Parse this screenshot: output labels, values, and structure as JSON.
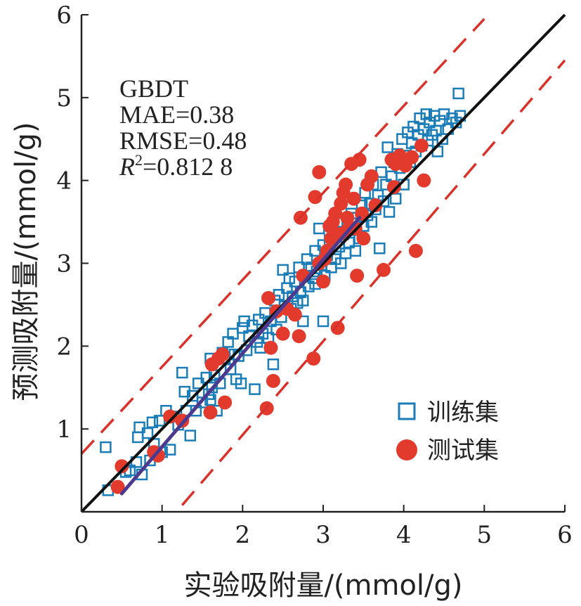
{
  "chart_data": {
    "type": "scatter",
    "xlabel": "实验吸附量/(mmol/g)",
    "ylabel": "预测吸附量/(mmol/g)",
    "xlim": [
      0,
      6
    ],
    "ylim": [
      0,
      6
    ],
    "x_ticks": [
      "0",
      "1",
      "2",
      "3",
      "4",
      "5",
      "6"
    ],
    "y_ticks": [
      "1",
      "2",
      "3",
      "4",
      "5",
      "6"
    ],
    "grid": false,
    "legend_position": "bottom-right",
    "stats": {
      "model": "GBDT",
      "mae": "MAE=0.38",
      "rmse": "RMSE=0.48",
      "r2_symbol": "R",
      "r2_exp": "2",
      "r2_value": "=0.812 8"
    },
    "reference_lines": [
      {
        "kind": "parity",
        "x": [
          0,
          6
        ],
        "y": [
          0,
          6
        ],
        "color": "#111111",
        "style": "solid"
      },
      {
        "kind": "upper-bound",
        "x": [
          0,
          5
        ],
        "y": [
          0.7,
          5.95
        ],
        "color": "#d9322b",
        "style": "dashed"
      },
      {
        "kind": "lower-bound",
        "x": [
          1.25,
          6
        ],
        "y": [
          0.08,
          5.45
        ],
        "color": "#d9322b",
        "style": "dashed"
      },
      {
        "kind": "fit",
        "x": [
          0.5,
          3.45
        ],
        "y": [
          0.22,
          3.55
        ],
        "color": "#4d3a8f",
        "style": "solid"
      }
    ],
    "series": [
      {
        "name": "训练集",
        "marker": "square-open",
        "color": "#1a7db8",
        "points": [
          [
            0.3,
            0.78
          ],
          [
            0.33,
            0.26
          ],
          [
            0.55,
            0.48
          ],
          [
            0.6,
            0.5
          ],
          [
            0.68,
            0.6
          ],
          [
            0.7,
            0.9
          ],
          [
            0.72,
            1.02
          ],
          [
            0.75,
            0.45
          ],
          [
            0.82,
            0.95
          ],
          [
            0.85,
            0.62
          ],
          [
            0.88,
            1.08
          ],
          [
            0.9,
            0.82
          ],
          [
            0.93,
            0.7
          ],
          [
            0.97,
            1.1
          ],
          [
            1.0,
            0.72
          ],
          [
            1.05,
            1.22
          ],
          [
            1.1,
            0.75
          ],
          [
            1.15,
            1.15
          ],
          [
            1.2,
            1.05
          ],
          [
            1.25,
            1.68
          ],
          [
            1.28,
            1.45
          ],
          [
            1.3,
            1.22
          ],
          [
            1.35,
            0.92
          ],
          [
            1.38,
            1.4
          ],
          [
            1.42,
            1.22
          ],
          [
            1.45,
            1.55
          ],
          [
            1.5,
            1.32
          ],
          [
            1.55,
            1.62
          ],
          [
            1.58,
            1.42
          ],
          [
            1.6,
            1.85
          ],
          [
            1.62,
            1.5
          ],
          [
            1.65,
            1.65
          ],
          [
            1.68,
            1.22
          ],
          [
            1.72,
            1.55
          ],
          [
            1.75,
            1.92
          ],
          [
            1.78,
            1.85
          ],
          [
            1.82,
            2.05
          ],
          [
            1.85,
            1.72
          ],
          [
            1.88,
            2.15
          ],
          [
            1.92,
            1.6
          ],
          [
            1.95,
            1.88
          ],
          [
            1.98,
            1.55
          ],
          [
            2.0,
            2.22
          ],
          [
            2.02,
            2.3
          ],
          [
            2.05,
            1.95
          ],
          [
            2.08,
            2.12
          ],
          [
            2.12,
            2.25
          ],
          [
            2.15,
            1.48
          ],
          [
            2.18,
            2.05
          ],
          [
            2.2,
            2.32
          ],
          [
            2.22,
            1.98
          ],
          [
            2.25,
            2.15
          ],
          [
            2.28,
            2.4
          ],
          [
            2.32,
            2.1
          ],
          [
            2.35,
            2.3
          ],
          [
            2.38,
            1.78
          ],
          [
            2.4,
            2.55
          ],
          [
            2.42,
            2.2
          ],
          [
            2.45,
            2.62
          ],
          [
            2.48,
            2.35
          ],
          [
            2.5,
            2.92
          ],
          [
            2.52,
            2.48
          ],
          [
            2.55,
            2.7
          ],
          [
            2.58,
            2.82
          ],
          [
            2.6,
            2.45
          ],
          [
            2.62,
            2.6
          ],
          [
            2.65,
            2.78
          ],
          [
            2.68,
            2.52
          ],
          [
            2.7,
            2.95
          ],
          [
            2.72,
            2.65
          ],
          [
            2.75,
            2.55
          ],
          [
            2.78,
            2.85
          ],
          [
            2.8,
            3.05
          ],
          [
            2.82,
            2.72
          ],
          [
            2.85,
            2.95
          ],
          [
            2.88,
            2.82
          ],
          [
            2.9,
            3.15
          ],
          [
            2.92,
            2.9
          ],
          [
            2.95,
            3.42
          ],
          [
            2.98,
            2.98
          ],
          [
            3.0,
            3.22
          ],
          [
            3.02,
            2.85
          ],
          [
            3.05,
            3.1
          ],
          [
            3.08,
            3.28
          ],
          [
            3.1,
            2.95
          ],
          [
            3.12,
            3.38
          ],
          [
            3.15,
            3.05
          ],
          [
            3.18,
            3.5
          ],
          [
            3.2,
            3.2
          ],
          [
            3.22,
            3.0
          ],
          [
            3.25,
            3.35
          ],
          [
            3.28,
            3.12
          ],
          [
            3.3,
            3.48
          ],
          [
            3.32,
            3.25
          ],
          [
            3.35,
            3.6
          ],
          [
            3.38,
            3.4
          ],
          [
            3.4,
            3.15
          ],
          [
            3.42,
            3.55
          ],
          [
            3.45,
            3.3
          ],
          [
            3.48,
            3.7
          ],
          [
            3.5,
            3.45
          ],
          [
            3.52,
            3.85
          ],
          [
            3.55,
            3.58
          ],
          [
            3.58,
            3.72
          ],
          [
            3.6,
            3.5
          ],
          [
            3.62,
            3.95
          ],
          [
            3.65,
            3.65
          ],
          [
            3.68,
            3.82
          ],
          [
            3.7,
            3.18
          ],
          [
            3.72,
            4.1
          ],
          [
            3.75,
            3.75
          ],
          [
            3.78,
            3.95
          ],
          [
            3.8,
            4.4
          ],
          [
            3.82,
            3.62
          ],
          [
            3.85,
            4.05
          ],
          [
            3.88,
            4.22
          ],
          [
            3.9,
            3.78
          ],
          [
            3.92,
            4.32
          ],
          [
            3.95,
            4.15
          ],
          [
            3.98,
            4.5
          ],
          [
            4.0,
            3.95
          ],
          [
            4.02,
            4.3
          ],
          [
            4.05,
            4.58
          ],
          [
            4.08,
            4.22
          ],
          [
            4.1,
            4.45
          ],
          [
            4.12,
            4.65
          ],
          [
            4.15,
            4.35
          ],
          [
            4.18,
            4.55
          ],
          [
            4.2,
            4.75
          ],
          [
            4.22,
            4.42
          ],
          [
            4.25,
            4.62
          ],
          [
            4.28,
            4.8
          ],
          [
            4.3,
            4.48
          ],
          [
            4.32,
            4.7
          ],
          [
            4.35,
            4.55
          ],
          [
            4.38,
            4.78
          ],
          [
            4.4,
            4.6
          ],
          [
            4.42,
            4.35
          ],
          [
            4.45,
            4.72
          ],
          [
            4.48,
            4.5
          ],
          [
            4.5,
            4.8
          ],
          [
            4.55,
            4.62
          ],
          [
            4.6,
            4.75
          ],
          [
            4.65,
            4.7
          ],
          [
            4.68,
            5.05
          ],
          [
            4.7,
            4.78
          ],
          [
            3.0,
            2.3
          ],
          [
            2.9,
            2.75
          ],
          [
            1.6,
            1.35
          ],
          [
            2.75,
            2.3
          ],
          [
            1.9,
            1.9
          ]
        ]
      },
      {
        "name": "测试集",
        "marker": "circle-filled",
        "color": "#e23b2e",
        "points": [
          [
            0.45,
            0.3
          ],
          [
            0.5,
            0.55
          ],
          [
            0.9,
            0.72
          ],
          [
            0.95,
            0.68
          ],
          [
            1.1,
            1.15
          ],
          [
            1.25,
            1.1
          ],
          [
            1.6,
            1.2
          ],
          [
            1.62,
            1.78
          ],
          [
            1.7,
            1.85
          ],
          [
            1.75,
            1.9
          ],
          [
            1.78,
            1.32
          ],
          [
            2.3,
            1.25
          ],
          [
            2.32,
            2.58
          ],
          [
            2.35,
            1.98
          ],
          [
            2.38,
            1.58
          ],
          [
            2.42,
            2.42
          ],
          [
            2.5,
            2.15
          ],
          [
            2.55,
            2.45
          ],
          [
            2.65,
            2.38
          ],
          [
            2.7,
            2.12
          ],
          [
            2.72,
            3.55
          ],
          [
            2.75,
            2.85
          ],
          [
            2.88,
            1.85
          ],
          [
            2.9,
            3.8
          ],
          [
            2.95,
            3.0
          ],
          [
            3.0,
            2.78
          ],
          [
            3.02,
            3.05
          ],
          [
            3.05,
            3.15
          ],
          [
            3.08,
            3.45
          ],
          [
            3.1,
            3.3
          ],
          [
            3.12,
            3.5
          ],
          [
            3.15,
            3.6
          ],
          [
            3.18,
            2.22
          ],
          [
            3.2,
            3.35
          ],
          [
            3.22,
            3.72
          ],
          [
            3.25,
            3.85
          ],
          [
            3.28,
            3.95
          ],
          [
            3.3,
            3.55
          ],
          [
            3.35,
            4.2
          ],
          [
            3.38,
            3.78
          ],
          [
            3.4,
            3.42
          ],
          [
            3.42,
            2.85
          ],
          [
            3.45,
            4.25
          ],
          [
            3.48,
            3.6
          ],
          [
            3.5,
            3.3
          ],
          [
            3.55,
            3.95
          ],
          [
            3.6,
            4.05
          ],
          [
            3.65,
            3.7
          ],
          [
            3.75,
            2.92
          ],
          [
            3.85,
            4.25
          ],
          [
            3.88,
            3.92
          ],
          [
            3.9,
            4.2
          ],
          [
            3.95,
            4.3
          ],
          [
            4.02,
            4.18
          ],
          [
            4.1,
            4.28
          ],
          [
            4.15,
            3.15
          ],
          [
            4.22,
            4.42
          ],
          [
            4.25,
            4.0
          ],
          [
            2.95,
            4.1
          ],
          [
            3.3,
            3.4
          ]
        ]
      }
    ]
  }
}
